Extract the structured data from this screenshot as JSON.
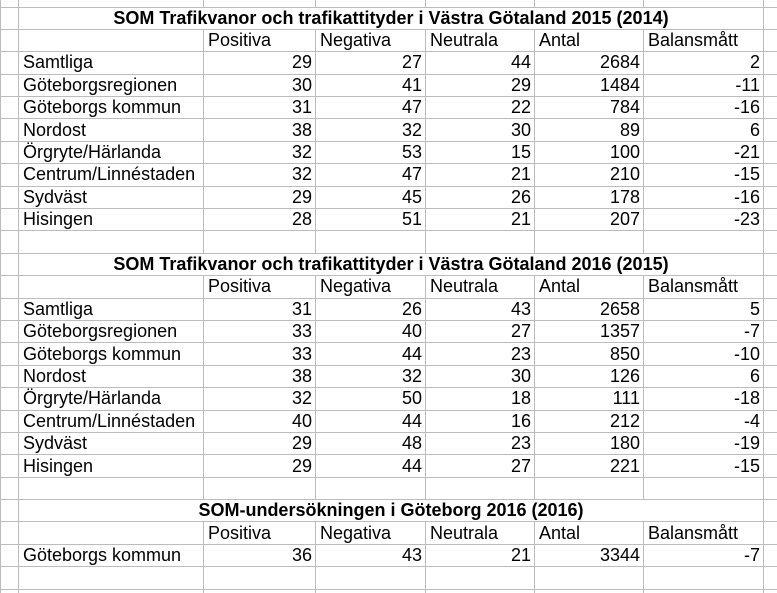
{
  "sheet": {
    "background": "#ffffff",
    "gridline_color": "#bcbcbc",
    "text_color": "#000000"
  },
  "columns": {
    "labels": [
      "Positiva",
      "Negativa",
      "Neutrala",
      "Antal",
      "Balansmått"
    ]
  },
  "tables": [
    {
      "title": "SOM Trafikvanor och trafikattityder i Västra Götaland 2015 (2014)",
      "rows": [
        {
          "label": "Samtliga",
          "values": [
            "29",
            "27",
            "44",
            "2684",
            "2"
          ]
        },
        {
          "label": "Göteborgsregionen",
          "values": [
            "30",
            "41",
            "29",
            "1484",
            "-11"
          ]
        },
        {
          "label": "Göteborgs kommun",
          "values": [
            "31",
            "47",
            "22",
            "784",
            "-16"
          ]
        },
        {
          "label": "Nordost",
          "values": [
            "38",
            "32",
            "30",
            "89",
            "6"
          ]
        },
        {
          "label": "Örgryte/Härlanda",
          "values": [
            "32",
            "53",
            "15",
            "100",
            "-21"
          ]
        },
        {
          "label": "Centrum/Linnéstaden",
          "values": [
            "32",
            "47",
            "21",
            "210",
            "-15"
          ]
        },
        {
          "label": "Sydväst",
          "values": [
            "29",
            "45",
            "26",
            "178",
            "-16"
          ]
        },
        {
          "label": "Hisingen",
          "values": [
            "28",
            "51",
            "21",
            "207",
            "-23"
          ]
        }
      ]
    },
    {
      "title": "SOM Trafikvanor och trafikattityder i Västra Götaland 2016 (2015)",
      "rows": [
        {
          "label": "Samtliga",
          "values": [
            "31",
            "26",
            "43",
            "2658",
            "5"
          ]
        },
        {
          "label": "Göteborgsregionen",
          "values": [
            "33",
            "40",
            "27",
            "1357",
            "-7"
          ]
        },
        {
          "label": "Göteborgs kommun",
          "values": [
            "33",
            "44",
            "23",
            "850",
            "-10"
          ]
        },
        {
          "label": "Nordost",
          "values": [
            "38",
            "32",
            "30",
            "126",
            "6"
          ]
        },
        {
          "label": "Örgryte/Härlanda",
          "values": [
            "32",
            "50",
            "18",
            "111",
            "-18"
          ]
        },
        {
          "label": "Centrum/Linnéstaden",
          "values": [
            "40",
            "44",
            "16",
            "212",
            "-4"
          ]
        },
        {
          "label": "Sydväst",
          "values": [
            "29",
            "48",
            "23",
            "180",
            "-19"
          ]
        },
        {
          "label": "Hisingen",
          "values": [
            "29",
            "44",
            "27",
            "221",
            "-15"
          ]
        }
      ]
    },
    {
      "title": "SOM-undersökningen i Göteborg 2016 (2016)",
      "rows": [
        {
          "label": "Göteborgs kommun",
          "values": [
            "36",
            "43",
            "21",
            "3344",
            "-7"
          ]
        }
      ]
    }
  ]
}
